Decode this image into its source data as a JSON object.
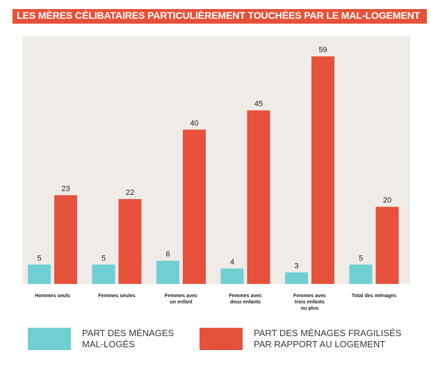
{
  "chart_data": {
    "type": "bar",
    "title": "LES MÈRES CÉLIBATAIRES PARTICULIÈREMENT TOUCHÉES PAR LE MAL-LOGEMENT",
    "categories": [
      "Hommes seuls",
      "Femmes seules",
      "Femmes avec\nun enfant",
      "Femmes avec\ndeux enfants",
      "Femmes avec\ntrois enfants\nou plus",
      "Total des ménages"
    ],
    "series": [
      {
        "name": "PART DES MÉNAGES\nMAL-LOGÉS",
        "color": "#6fcfd3",
        "values": [
          5,
          5,
          6,
          4,
          3,
          5
        ]
      },
      {
        "name": "PART DES MÉNAGES FRAGILISÉS\nPAR RAPPORT AU LOGEMENT",
        "color": "#e5513a",
        "values": [
          23,
          22,
          40,
          45,
          59,
          20
        ]
      }
    ],
    "ylim": [
      0,
      60
    ],
    "grid": false,
    "legend": "bottom",
    "plot_background": "#efebe6"
  }
}
